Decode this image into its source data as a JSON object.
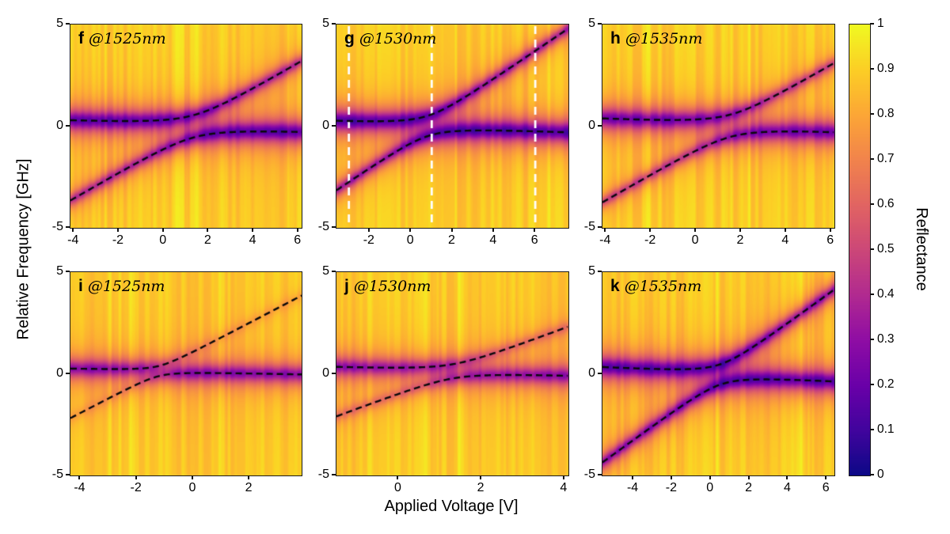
{
  "figure": {
    "background": "#ffffff",
    "x_axis_label": "Applied Voltage [V]",
    "y_axis_label": "Relative Frequency [GHz]",
    "colorbar": {
      "label": "Reflectance",
      "min": 0,
      "max": 1,
      "ticks": [
        0,
        0.1,
        0.2,
        0.3,
        0.4,
        0.5,
        0.6,
        0.7,
        0.8,
        0.9,
        1
      ]
    }
  },
  "chart_data": {
    "type": "heatmap",
    "description": "Six reflectance maps versus applied voltage (x) and relative frequency (y) showing avoided mode crossings; black dashed lines trace the two coupled-mode branches; panel g has white dashed vertical cut lines.",
    "colormap": "plasma",
    "colormap_stops": [
      [
        0.0,
        "#0d0887"
      ],
      [
        0.1,
        "#41049d"
      ],
      [
        0.2,
        "#6a00a8"
      ],
      [
        0.3,
        "#8f0da4"
      ],
      [
        0.4,
        "#b12a90"
      ],
      [
        0.5,
        "#cc4778"
      ],
      [
        0.6,
        "#e16462"
      ],
      [
        0.7,
        "#f1834c"
      ],
      [
        0.8,
        "#fca636"
      ],
      [
        0.9,
        "#fcce25"
      ],
      [
        1.0,
        "#f0f921"
      ]
    ],
    "value_label": "Reflectance",
    "value_range": [
      0,
      1
    ],
    "x_label": "Applied Voltage [V]",
    "y_label": "Relative Frequency [GHz]",
    "panels": [
      {
        "id": "f",
        "label": "f",
        "wavelength": "@1525nm",
        "row": 0,
        "col": 0,
        "x_range": [
          -4.15,
          6.15
        ],
        "y_range": [
          -5,
          5
        ],
        "x_ticks": [
          -4,
          -2,
          0,
          2,
          4,
          6
        ],
        "y_ticks": [
          5,
          0,
          -5
        ],
        "model": {
          "base_reflectance": 0.9,
          "coupling_g": 0.55,
          "flat_mode": {
            "f0": 0.05,
            "slope": -0.04,
            "depth": 0.75,
            "width": 0.5
          },
          "tuned_mode": {
            "slope": 0.65,
            "v0": 1.35,
            "depth": 0.5,
            "width": 0.32
          }
        },
        "overlays": {
          "dashed_branches": true,
          "white_vlines": []
        }
      },
      {
        "id": "g",
        "label": "g",
        "wavelength": "@1530nm",
        "row": 0,
        "col": 1,
        "x_range": [
          -3.6,
          7.6
        ],
        "y_range": [
          -5,
          5
        ],
        "x_ticks": [
          -2,
          0,
          2,
          4,
          6
        ],
        "y_ticks": [
          5,
          0,
          -5
        ],
        "model": {
          "base_reflectance": 0.9,
          "coupling_g": 0.5,
          "flat_mode": {
            "f0": 0.05,
            "slope": -0.04,
            "depth": 0.78,
            "width": 0.5
          },
          "tuned_mode": {
            "slope": 0.7,
            "v0": 0.8,
            "depth": 0.55,
            "width": 0.32
          }
        },
        "overlays": {
          "dashed_branches": true,
          "white_vlines": [
            -3,
            1,
            6
          ]
        }
      },
      {
        "id": "h",
        "label": "h",
        "wavelength": "@1535nm",
        "row": 0,
        "col": 2,
        "x_range": [
          -4.15,
          6.15
        ],
        "y_range": [
          -5,
          5
        ],
        "x_ticks": [
          -4,
          -2,
          0,
          2,
          4,
          6
        ],
        "y_ticks": [
          5,
          0,
          -5
        ],
        "model": {
          "base_reflectance": 0.9,
          "coupling_g": 0.55,
          "flat_mode": {
            "f0": 0.1,
            "slope": -0.05,
            "depth": 0.7,
            "width": 0.5
          },
          "tuned_mode": {
            "slope": 0.65,
            "v0": 1.5,
            "depth": 0.42,
            "width": 0.3
          }
        },
        "overlays": {
          "dashed_branches": true,
          "white_vlines": []
        }
      },
      {
        "id": "i",
        "label": "i",
        "wavelength": "@1525nm",
        "row": 1,
        "col": 0,
        "x_range": [
          -4.35,
          3.85
        ],
        "y_range": [
          -5,
          5
        ],
        "x_ticks": [
          -4,
          -2,
          0,
          2
        ],
        "y_ticks": [
          5,
          0,
          -5
        ],
        "model": {
          "base_reflectance": 0.89,
          "coupling_g": 0.25,
          "flat_mode": {
            "f0": 0.1,
            "slope": -0.03,
            "depth": 0.62,
            "width": 0.45
          },
          "tuned_mode": {
            "slope": 0.73,
            "v0": -1.4,
            "depth": 0.1,
            "width": 0.3
          }
        },
        "overlays": {
          "dashed_branches": true,
          "white_vlines": []
        }
      },
      {
        "id": "j",
        "label": "j",
        "wavelength": "@1530nm",
        "row": 1,
        "col": 1,
        "x_range": [
          -1.5,
          4.1
        ],
        "y_range": [
          -5,
          5
        ],
        "x_ticks": [
          0,
          2,
          4
        ],
        "y_ticks": [
          5,
          0,
          -5
        ],
        "model": {
          "base_reflectance": 0.89,
          "coupling_g": 0.35,
          "flat_mode": {
            "f0": 0.2,
            "slope": -0.06,
            "depth": 0.6,
            "width": 0.45
          },
          "tuned_mode": {
            "slope": 0.77,
            "v0": 1.15,
            "depth": 0.22,
            "width": 0.3
          }
        },
        "overlays": {
          "dashed_branches": true,
          "white_vlines": []
        }
      },
      {
        "id": "k",
        "label": "k",
        "wavelength": "@1535nm",
        "row": 1,
        "col": 2,
        "x_range": [
          -5.6,
          6.4
        ],
        "y_range": [
          -5,
          5
        ],
        "x_ticks": [
          -4,
          -2,
          0,
          2,
          4,
          6
        ],
        "y_ticks": [
          5,
          0,
          -5
        ],
        "model": {
          "base_reflectance": 0.9,
          "coupling_g": 0.5,
          "flat_mode": {
            "f0": 0.0,
            "slope": -0.05,
            "depth": 0.75,
            "width": 0.5
          },
          "tuned_mode": {
            "slope": 0.7,
            "v0": 0.55,
            "depth": 0.6,
            "width": 0.35
          }
        },
        "overlays": {
          "dashed_branches": true,
          "white_vlines": []
        }
      }
    ]
  }
}
